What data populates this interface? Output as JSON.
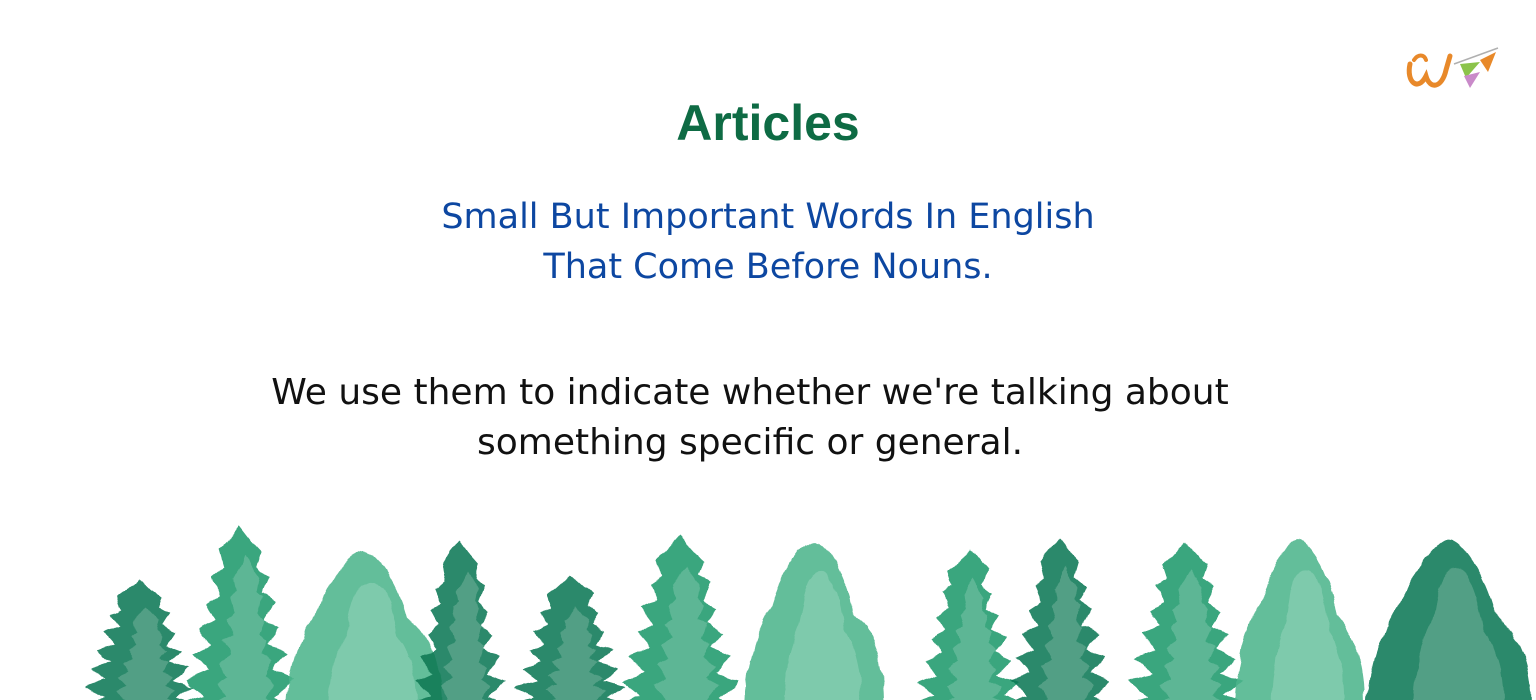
{
  "slide": {
    "title": "Articles",
    "subtitle_lines": [
      "Small But Important Words In English",
      "That Come Before Nouns."
    ],
    "body_lines": [
      "We use them to indicate whether we're talking about",
      "something specific or general."
    ]
  },
  "colors": {
    "title": "#0e6b44",
    "subtitle": "#0d47a1",
    "body": "#111111",
    "tree_dark": "#0f7a55",
    "tree_mid": "#1f9a6c",
    "tree_light": "#4db58c",
    "logo_orange": "#e8892a",
    "logo_green": "#8bc34a",
    "logo_pink": "#c98ac9"
  },
  "logo": {
    "icon": "w-pennant-logo",
    "letter": "W"
  }
}
